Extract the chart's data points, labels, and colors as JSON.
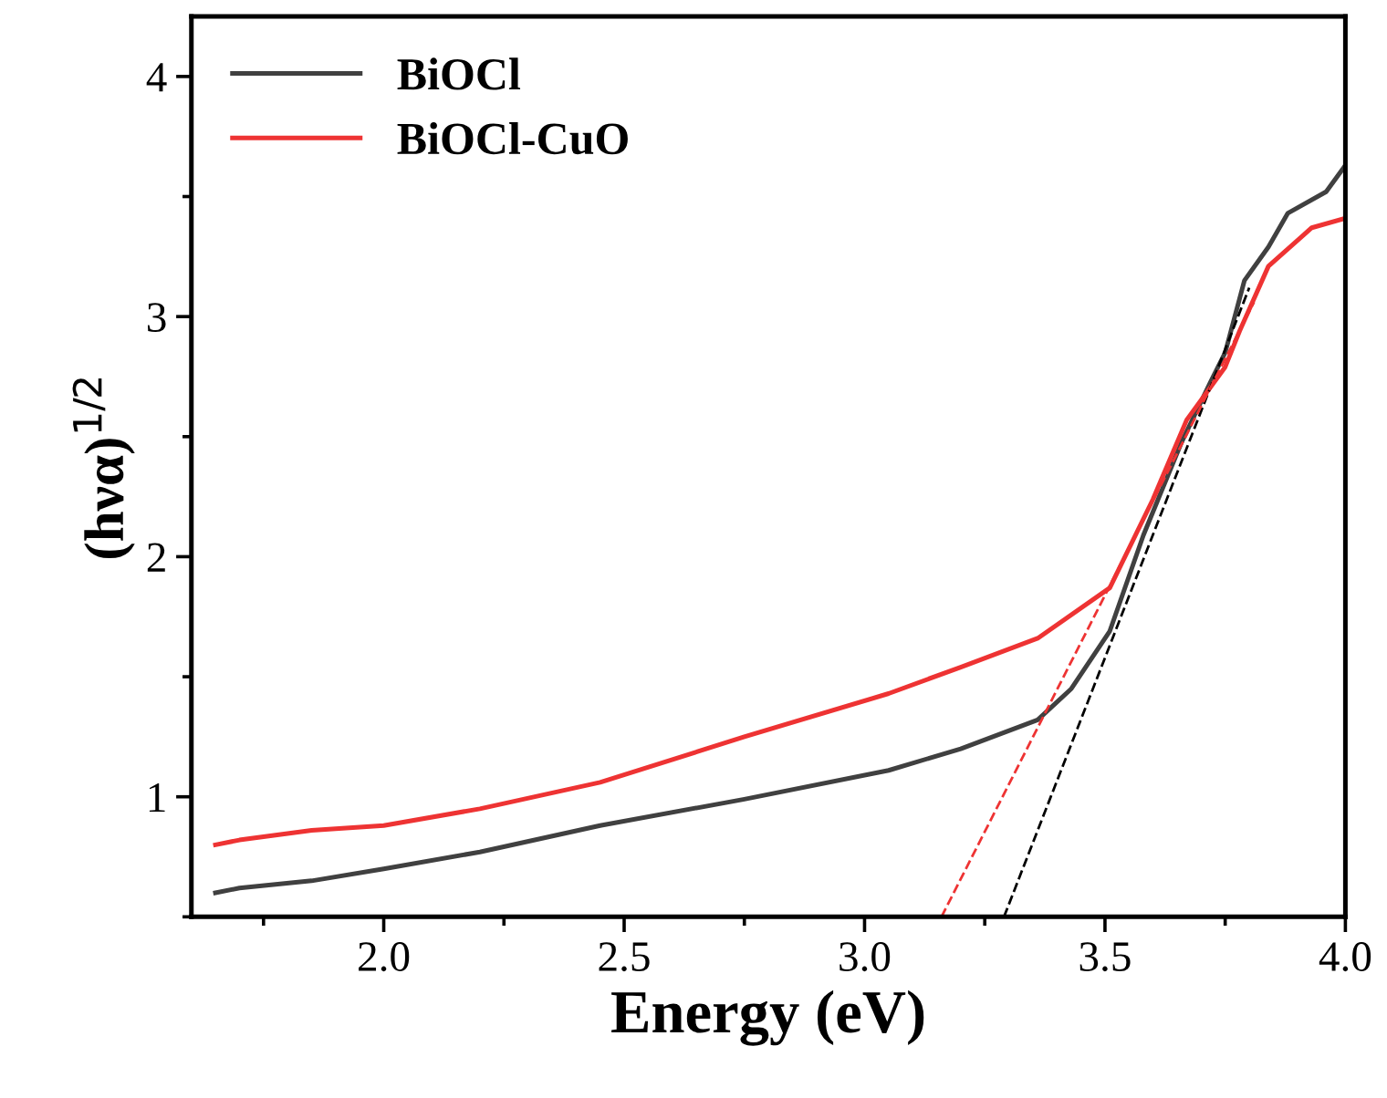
{
  "chart_data": {
    "type": "line",
    "xlabel": "Energy (eV)",
    "ylabel": "(hνα)$^{1/2}$",
    "xlim": [
      1.6,
      4.0
    ],
    "ylim": [
      0.5,
      4.25
    ],
    "xticks": [
      {
        "value": 1.75,
        "label": null
      },
      {
        "value": 2,
        "label": "2.0"
      },
      {
        "value": 2.25,
        "label": null
      },
      2.5,
      {
        "value": 2.75,
        "label": null
      },
      {
        "value": 3,
        "label": "3.0"
      },
      {
        "value": 3.25,
        "label": null
      },
      3.5,
      {
        "value": 3.75,
        "label": null
      },
      {
        "value": 4,
        "label": "4.0"
      }
    ],
    "yticks": [
      {
        "value": 0.5,
        "label": null
      },
      1,
      {
        "value": 1.5,
        "label": null
      },
      2,
      {
        "value": 2.5,
        "label": null
      },
      3,
      {
        "value": 3.5,
        "label": null
      },
      4
    ],
    "legend": "top left",
    "grid": false,
    "marker": "none",
    "series": [
      {
        "name": "BiOCl",
        "color": "#404040",
        "line_style": "solid",
        "x": [
          1.65,
          1.7,
          1.85,
          2.0,
          2.2,
          2.45,
          2.75,
          3.05,
          3.2,
          3.36,
          3.43,
          3.51,
          3.58,
          3.66,
          3.72,
          3.75,
          3.79,
          3.84,
          3.88,
          3.96,
          4.0
        ],
        "values": [
          0.6,
          0.62,
          0.65,
          0.7,
          0.77,
          0.88,
          0.99,
          1.11,
          1.2,
          1.32,
          1.45,
          1.69,
          2.09,
          2.48,
          2.73,
          2.85,
          3.15,
          3.29,
          3.43,
          3.52,
          3.63
        ]
      },
      {
        "name": "BiOCl-CuO",
        "color": "#ee3333",
        "line_style": "solid",
        "x": [
          1.65,
          1.7,
          1.85,
          2.0,
          2.2,
          2.45,
          2.75,
          3.05,
          3.2,
          3.36,
          3.51,
          3.6,
          3.67,
          3.75,
          3.78,
          3.84,
          3.93,
          4.0
        ],
        "values": [
          0.8,
          0.82,
          0.86,
          0.88,
          0.95,
          1.06,
          1.25,
          1.43,
          1.54,
          1.66,
          1.87,
          2.24,
          2.57,
          2.79,
          2.94,
          3.21,
          3.37,
          3.41
        ]
      },
      {
        "color": "#000000",
        "line_style": "dashed",
        "x": [
          3.29,
          3.8
        ],
        "values": [
          0.5,
          3.12
        ]
      },
      {
        "color": "#ee3333",
        "line_style": "dashed",
        "x": [
          3.16,
          3.81
        ],
        "values": [
          0.5,
          3.06
        ]
      }
    ]
  }
}
